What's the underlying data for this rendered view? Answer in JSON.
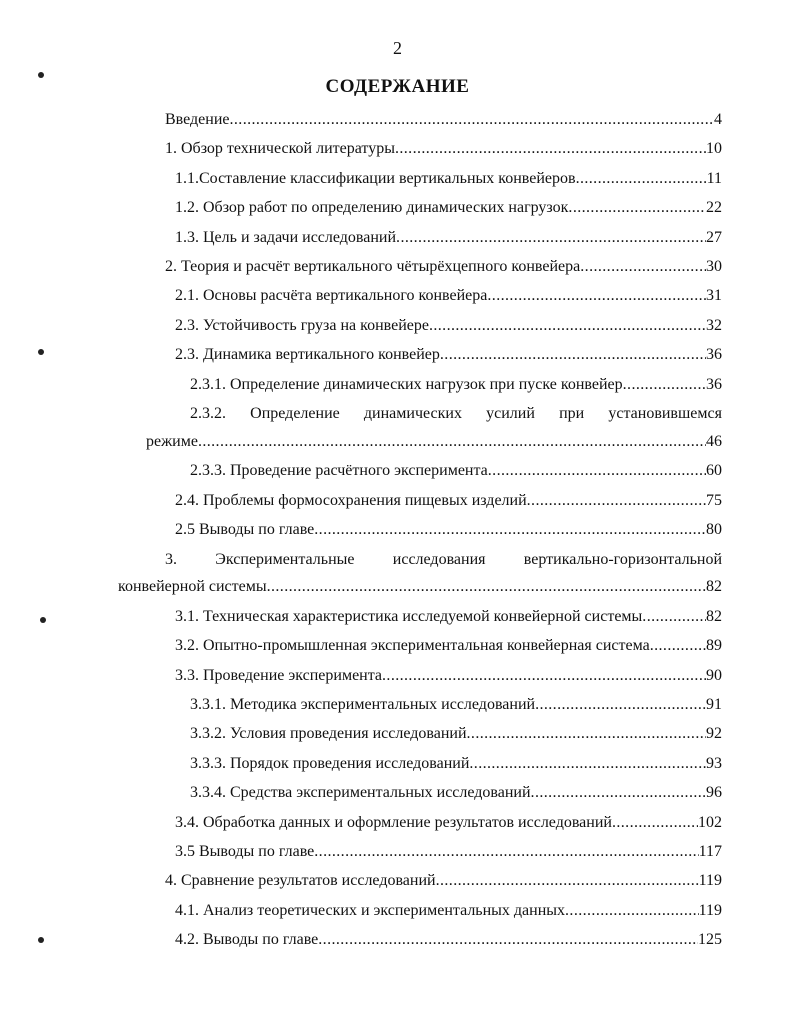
{
  "page_number": "2",
  "title": "СОДЕРЖАНИЕ",
  "toc": [
    {
      "label": "Введение",
      "page": "4",
      "level": 0
    },
    {
      "label": "1. Обзор технической литературы",
      "page": "10",
      "level": 1
    },
    {
      "label": "1.1.Составление классификации вертикальных конвейеров",
      "page": "11",
      "level": 2
    },
    {
      "label": "1.2. Обзор работ по определению динамических нагрузок",
      "page": "22",
      "level": 2
    },
    {
      "label": "1.3. Цель и задачи исследований",
      "page": "27",
      "level": 2
    },
    {
      "label": "2. Теория и расчёт вертикального чётырёхцепного конвейера",
      "page": "30",
      "level": 1
    },
    {
      "label": "2.1. Основы расчёта вертикального конвейера",
      "page": "31",
      "level": 2
    },
    {
      "label": "2.3. Устойчивость груза на конвейере",
      "page": "32",
      "level": 2
    },
    {
      "label": "2.3. Динамика вертикального конвейер",
      "page": "36",
      "level": 2
    },
    {
      "label": "2.3.1. Определение динамических нагрузок при пуске конвейер",
      "page": "36",
      "level": 3
    },
    {
      "label": "2.3.2. Определение динамических усилий при установившемся",
      "label_cont": "режиме",
      "page": "46",
      "level": 3,
      "wrap_indent": "a"
    },
    {
      "label": "2.3.3. Проведение расчётного эксперимента",
      "page": "60",
      "level": 3
    },
    {
      "label": "2.4. Проблемы формосохранения пищевых изделий",
      "page": "75",
      "level": 2
    },
    {
      "label": "2.5 Выводы по главе",
      "page": "80",
      "level": 2
    },
    {
      "label": "3. Экспериментальные исследования вертикально-горизонтальной",
      "label_cont": "конвейерной системы",
      "page": "82",
      "level": 1,
      "wrap_indent": "b"
    },
    {
      "label": "3.1. Техническая характеристика исследуемой конвейерной системы",
      "page": "82",
      "level": 2
    },
    {
      "label": "3.2. Опытно-промышленная экспериментальная конвейерная система",
      "page": "89",
      "level": 2
    },
    {
      "label": "3.3. Проведение эксперимента",
      "page": "90",
      "level": 2
    },
    {
      "label": "3.3.1. Методика экспериментальных исследований",
      "page": "91",
      "level": 3
    },
    {
      "label": "3.3.2. Условия проведения исследований",
      "page": "92",
      "level": 3
    },
    {
      "label": "3.3.3. Порядок проведения исследований",
      "page": "93",
      "level": 3
    },
    {
      "label": "3.3.4. Средства экспериментальных исследований",
      "page": "96",
      "level": 3
    },
    {
      "label": "3.4. Обработка данных и оформление результатов исследований",
      "page": "102",
      "level": 2
    },
    {
      "label": "3.5 Выводы по главе",
      "page": "117",
      "level": 2
    },
    {
      "label": "4. Сравнение результатов исследований",
      "page": "119",
      "level": 1
    },
    {
      "label": "4.1. Анализ теоретических и экспериментальных данных",
      "page": "119",
      "level": 2
    },
    {
      "label": "4.2. Выводы по главе",
      "page": "125",
      "level": 2
    }
  ]
}
